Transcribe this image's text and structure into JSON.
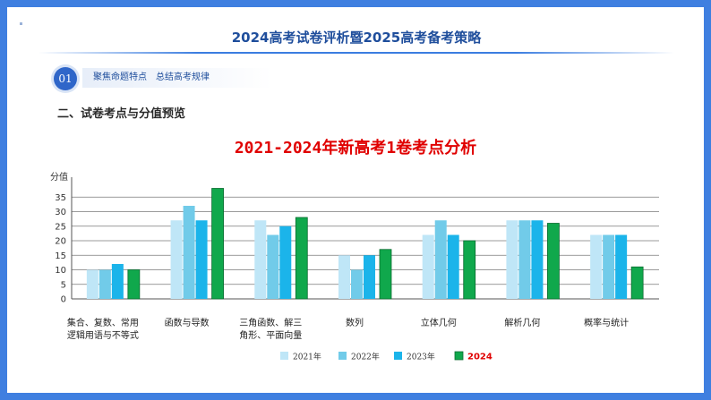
{
  "header": {
    "title": "2024高考试卷评析暨2025高考备考策略"
  },
  "section_badge": {
    "number": "01",
    "label": "聚焦命题特点　总结高考规律"
  },
  "section_title": "二、试卷考点与分值预览",
  "colors": {
    "frame": "#3f7fe0",
    "series": [
      "#bfe6f7",
      "#71cbe9",
      "#1bb4ea",
      "#10a84c"
    ]
  },
  "chart_data": {
    "type": "bar",
    "title": "2021-2024年新高考1卷考点分析",
    "ylabel": "分值",
    "ylim": [
      0,
      40
    ],
    "yticks": [
      0,
      5,
      10,
      15,
      20,
      25,
      30,
      35
    ],
    "grid": true,
    "legend": "bottom",
    "categories": [
      [
        "集合、复数、常用",
        "逻辑用语与不等式"
      ],
      [
        "函数与导数"
      ],
      [
        "三角函数、解三",
        "角形、平面向量"
      ],
      [
        "数列"
      ],
      [
        "立体几何"
      ],
      [
        "解析几何"
      ],
      [
        "概率与统计"
      ]
    ],
    "series": [
      {
        "name": "2021年",
        "values": [
          10,
          27,
          27,
          15,
          22,
          27,
          22
        ]
      },
      {
        "name": "2022年",
        "values": [
          10,
          32,
          22,
          10,
          27,
          27,
          22
        ]
      },
      {
        "name": "2023年",
        "values": [
          12,
          27,
          25,
          15,
          22,
          27,
          22
        ]
      },
      {
        "name": "2024",
        "values": [
          10,
          38,
          28,
          17,
          20,
          26,
          11
        ]
      }
    ]
  }
}
